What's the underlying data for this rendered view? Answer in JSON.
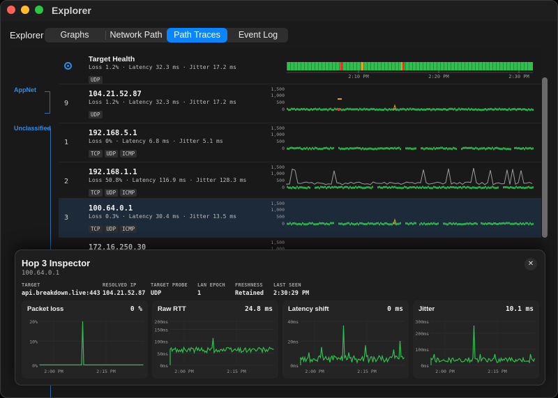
{
  "window": {
    "title": "Explorer"
  },
  "nav": {
    "label": "Explorer",
    "tabs": [
      "Graphs",
      "Network Path",
      "Path Traces",
      "Event Log"
    ],
    "active": "Path Traces"
  },
  "groups": {
    "appnet": "AppNet",
    "unclassified": "Unclassified"
  },
  "rows": [
    {
      "hop": "",
      "name": "Target Health",
      "stats": "Loss 1.2% · Latency 32.3 ms · Jitter 17.2 ms",
      "tags": [
        "UDP"
      ],
      "kind": "health"
    },
    {
      "hop": "9",
      "name": "104.21.52.87",
      "stats": "Loss 1.2% · Latency 32.3 ms · Jitter 17.2 ms",
      "tags": [
        "UDP"
      ],
      "kind": "hop"
    },
    {
      "hop": "1",
      "name": "192.168.5.1",
      "stats": "Loss 0% · Latency 6.8 ms · Jitter 5.1 ms",
      "tags": [
        "TCP",
        "UDP",
        "ICMP"
      ],
      "kind": "hop"
    },
    {
      "hop": "2",
      "name": "192.168.1.1",
      "stats": "Loss 50.8% · Latency 116.9 ms · Jitter 128.3 ms",
      "tags": [
        "TCP",
        "UDP",
        "ICMP"
      ],
      "kind": "hop"
    },
    {
      "hop": "3",
      "name": "100.64.0.1",
      "stats": "Loss 0.3% · Latency 30.4 ms · Jitter 13.5 ms",
      "tags": [
        "TCP",
        "UDP",
        "ICMP"
      ],
      "kind": "hop"
    },
    {
      "hop": "",
      "name": "172.16.250.30",
      "stats": "",
      "tags": [],
      "kind": "hop"
    }
  ],
  "trace_axis": {
    "y_ticks": [
      "1,500",
      "1,000",
      "500",
      "0"
    ],
    "x_ticks": [
      "2:10 PM",
      "2:20 PM",
      "2:30 PM"
    ]
  },
  "inspector": {
    "title": "Hop 3 Inspector",
    "subtitle": "100.64.0.1",
    "meta": [
      {
        "label": "TARGET",
        "value": "api.breakdown.live:443"
      },
      {
        "label": "RESOLVED IP",
        "value": "104.21.52.87"
      },
      {
        "label": "TARGET PROBE",
        "value": "UDP"
      },
      {
        "label": "LAN EPOCH",
        "value": "1"
      },
      {
        "label": "FRESHNESS",
        "value": "Retained"
      },
      {
        "label": "LAST SEEN",
        "value": "2:30:29 PM"
      }
    ],
    "close_icon": "close-icon",
    "cards": [
      {
        "title": "Packet loss",
        "value": "0 %",
        "y_ticks": [
          "20%",
          "10%",
          "0%"
        ],
        "x_ticks": [
          "2:00 PM",
          "2:15 PM"
        ]
      },
      {
        "title": "Raw RTT",
        "value": "24.8 ms",
        "y_ticks": [
          "200ms",
          "150ms",
          "100ms",
          "50ms",
          "0ms"
        ],
        "x_ticks": [
          "2:00 PM",
          "2:15 PM"
        ]
      },
      {
        "title": "Latency shift",
        "value": "0 ms",
        "y_ticks": [
          "40ms",
          "20ms",
          "0ms"
        ],
        "x_ticks": [
          "2:00 PM",
          "2:15 PM"
        ]
      },
      {
        "title": "Jitter",
        "value": "10.1 ms",
        "y_ticks": [
          "300ms",
          "200ms",
          "100ms",
          "0ms"
        ],
        "x_ticks": [
          "2:00 PM",
          "2:15 PM"
        ]
      }
    ]
  },
  "colors": {
    "accent": "#0a84ff",
    "good": "#2fbf4f",
    "warn": "#e0a020",
    "bad": "#d83a2a"
  }
}
